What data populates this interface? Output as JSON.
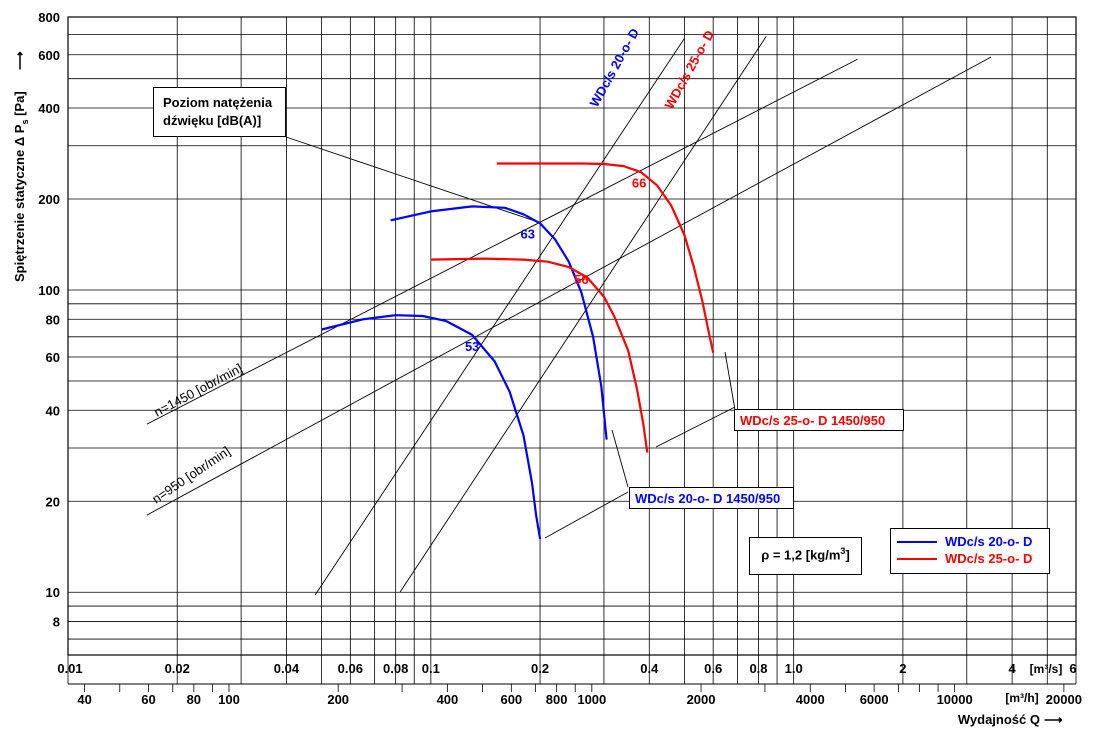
{
  "chart_data": {
    "type": "line",
    "axes": {
      "x": {
        "scale": "log",
        "range": [
          0.01,
          6
        ],
        "label": "Wydajność Q",
        "ticks": [
          0.01,
          0.02,
          0.04,
          0.06,
          0.08,
          0.1,
          0.2,
          0.4,
          0.6,
          0.8,
          1.0,
          2,
          4,
          6
        ],
        "tick_labels": [
          "0.01",
          "0.02",
          "0.04",
          "0.06",
          "0.08",
          "0.1",
          "0.2",
          "0.4",
          "0.6",
          "0.8",
          "1.0",
          "2",
          "4",
          "6"
        ],
        "unit": "[m³/s]"
      },
      "x2": {
        "scale": "log",
        "label_unit": "[m³/h]",
        "ticks": [
          40,
          60,
          80,
          100,
          200,
          400,
          600,
          800,
          1000,
          2000,
          4000,
          6000,
          10000,
          20000
        ],
        "tick_labels": [
          "40",
          "60",
          "80",
          "100",
          "200",
          "400",
          "600",
          "800",
          "1000",
          "2000",
          "4000",
          "6000",
          "10000",
          "20000"
        ]
      },
      "y": {
        "scale": "log",
        "range": [
          6.2,
          800
        ],
        "label": "Spiętrzenie statyczne",
        "label_delta": "Δ P",
        "label_sub": "s",
        "label_unit": "[Pa]",
        "ticks": [
          8,
          10,
          20,
          40,
          60,
          80,
          100,
          200,
          400,
          600,
          800
        ],
        "tick_labels": [
          "8",
          "10",
          "20",
          "40",
          "60",
          "80",
          "100",
          "200",
          "400",
          "600",
          "800"
        ]
      }
    },
    "series": [
      {
        "name": "WDc/s 20-o- D",
        "speed": 1450,
        "color": "#0000ff",
        "x": [
          0.0775,
          0.1,
          0.13,
          0.16,
          0.18,
          0.2,
          0.22,
          0.24,
          0.26,
          0.28,
          0.295,
          0.305
        ],
        "y": [
          170,
          182,
          189,
          187,
          178,
          166,
          147,
          124,
          98,
          70,
          48,
          32
        ]
      },
      {
        "name": "WDc/s 20-o- D",
        "speed": 950,
        "color": "#0000ff",
        "x": [
          0.05,
          0.065,
          0.08,
          0.095,
          0.11,
          0.13,
          0.15,
          0.165,
          0.18,
          0.19,
          0.195,
          0.2
        ],
        "y": [
          74,
          80,
          82.5,
          82,
          79,
          71,
          58,
          46,
          33,
          23,
          18,
          15
        ]
      },
      {
        "name": "WDc/s 25-o- D",
        "speed": 1450,
        "color": "#ff0000",
        "x": [
          0.152,
          0.2,
          0.26,
          0.3,
          0.34,
          0.38,
          0.42,
          0.46,
          0.5,
          0.53,
          0.56,
          0.58,
          0.6
        ],
        "y": [
          262,
          262,
          262,
          261,
          257,
          245,
          222,
          190,
          152,
          120,
          92,
          75,
          62
        ]
      },
      {
        "name": "WDc/s 25-o- D",
        "speed": 950,
        "color": "#ff0000",
        "x": [
          0.1,
          0.14,
          0.18,
          0.21,
          0.24,
          0.27,
          0.3,
          0.32,
          0.35,
          0.37,
          0.385,
          0.395
        ],
        "y": [
          126,
          127,
          126,
          124,
          119,
          110,
          95,
          82,
          63,
          47,
          36,
          29
        ]
      }
    ],
    "system_lines": [
      {
        "name": "n=1450 [obr/min]",
        "x": [
          0.0165,
          1.5
        ],
        "y": [
          36,
          580
        ]
      },
      {
        "name": "n=950 [obr/min]",
        "x": [
          0.0165,
          3.5
        ],
        "y": [
          18,
          590
        ]
      }
    ],
    "rays": [
      {
        "series": "WDc/s 20-o- D",
        "x": [
          0.048,
          0.5
        ],
        "y": [
          9.8,
          680
        ]
      },
      {
        "series": "WDc/s 25-o- D",
        "x": [
          0.0822,
          0.84
        ],
        "y": [
          10,
          690
        ]
      }
    ],
    "operating_points": [
      {
        "label": "53",
        "x": 0.13,
        "y": 72,
        "color": "#0000ff"
      },
      {
        "label": "63",
        "x": 0.185,
        "y": 170,
        "color": "#0000ff"
      },
      {
        "label": "56",
        "x": 0.26,
        "y": 120,
        "color": "#ff0000"
      },
      {
        "label": "66",
        "x": 0.375,
        "y": 250,
        "color": "#ff0000"
      }
    ],
    "annotations": {
      "noise_level": {
        "line1": "Poziom natężenia",
        "line2": "dźwięku [dB(A)]"
      },
      "density": {
        "label": "ρ = 1,2 [kg/m",
        "sup": "3",
        "close": "]"
      },
      "callout_20": "WDc/s 20-o- D 1450/950",
      "callout_25": "WDc/s 25-o- D 1450/950"
    },
    "legend": [
      {
        "name": "WDc/s 20-o- D",
        "color": "#0000ff"
      },
      {
        "name": "WDc/s 25-o- D",
        "color": "#ff0000"
      }
    ]
  }
}
